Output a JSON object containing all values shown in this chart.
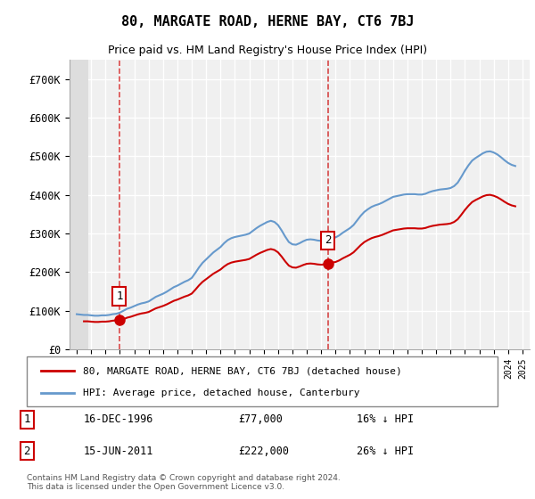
{
  "title": "80, MARGATE ROAD, HERNE BAY, CT6 7BJ",
  "subtitle": "Price paid vs. HM Land Registry's House Price Index (HPI)",
  "ylabel": "",
  "background_color": "#ffffff",
  "plot_bg_color": "#f0f0f0",
  "hatch_color": "#cccccc",
  "grid_color": "#ffffff",
  "ylim": [
    0,
    750000
  ],
  "yticks": [
    0,
    100000,
    200000,
    300000,
    400000,
    500000,
    600000,
    700000
  ],
  "ytick_labels": [
    "£0",
    "£100K",
    "£200K",
    "£300K",
    "£400K",
    "£500K",
    "£600K",
    "£700K"
  ],
  "xlim_start": 1993.5,
  "xlim_end": 2025.5,
  "hpi_color": "#6699cc",
  "price_color": "#cc0000",
  "point1_year": 1996.96,
  "point1_price": 77000,
  "point1_label": "1",
  "point2_year": 2011.46,
  "point2_price": 222000,
  "point2_label": "2",
  "vline1_year": 1996.96,
  "vline2_year": 2011.46,
  "legend_price_label": "80, MARGATE ROAD, HERNE BAY, CT6 7BJ (detached house)",
  "legend_hpi_label": "HPI: Average price, detached house, Canterbury",
  "annotation1_date": "16-DEC-1996",
  "annotation1_price": "£77,000",
  "annotation1_hpi": "16% ↓ HPI",
  "annotation2_date": "15-JUN-2011",
  "annotation2_price": "£222,000",
  "annotation2_hpi": "26% ↓ HPI",
  "footer": "Contains HM Land Registry data © Crown copyright and database right 2024.\nThis data is licensed under the Open Government Licence v3.0.",
  "hpi_data_x": [
    1994,
    1994.25,
    1994.5,
    1994.75,
    1995,
    1995.25,
    1995.5,
    1995.75,
    1996,
    1996.25,
    1996.5,
    1996.75,
    1997,
    1997.25,
    1997.5,
    1997.75,
    1998,
    1998.25,
    1998.5,
    1998.75,
    1999,
    1999.25,
    1999.5,
    1999.75,
    2000,
    2000.25,
    2000.5,
    2000.75,
    2001,
    2001.25,
    2001.5,
    2001.75,
    2002,
    2002.25,
    2002.5,
    2002.75,
    2003,
    2003.25,
    2003.5,
    2003.75,
    2004,
    2004.25,
    2004.5,
    2004.75,
    2005,
    2005.25,
    2005.5,
    2005.75,
    2006,
    2006.25,
    2006.5,
    2006.75,
    2007,
    2007.25,
    2007.5,
    2007.75,
    2008,
    2008.25,
    2008.5,
    2008.75,
    2009,
    2009.25,
    2009.5,
    2009.75,
    2010,
    2010.25,
    2010.5,
    2010.75,
    2011,
    2011.25,
    2011.5,
    2011.75,
    2012,
    2012.25,
    2012.5,
    2012.75,
    2013,
    2013.25,
    2013.5,
    2013.75,
    2014,
    2014.25,
    2014.5,
    2014.75,
    2015,
    2015.25,
    2015.5,
    2015.75,
    2016,
    2016.25,
    2016.5,
    2016.75,
    2017,
    2017.25,
    2017.5,
    2017.75,
    2018,
    2018.25,
    2018.5,
    2018.75,
    2019,
    2019.25,
    2019.5,
    2019.75,
    2020,
    2020.25,
    2020.5,
    2020.75,
    2021,
    2021.25,
    2021.5,
    2021.75,
    2022,
    2022.25,
    2022.5,
    2022.75,
    2023,
    2023.25,
    2023.5,
    2023.75,
    2024,
    2024.25,
    2024.5
  ],
  "hpi_data_y": [
    91000,
    90000,
    89000,
    89000,
    88000,
    87000,
    87000,
    88000,
    88000,
    89000,
    91000,
    92000,
    95000,
    100000,
    105000,
    108000,
    112000,
    116000,
    119000,
    121000,
    124000,
    130000,
    136000,
    140000,
    144000,
    149000,
    155000,
    161000,
    165000,
    170000,
    175000,
    179000,
    185000,
    198000,
    212000,
    224000,
    233000,
    242000,
    251000,
    258000,
    265000,
    275000,
    283000,
    288000,
    291000,
    293000,
    295000,
    297000,
    300000,
    307000,
    314000,
    320000,
    325000,
    330000,
    333000,
    330000,
    322000,
    308000,
    292000,
    278000,
    272000,
    271000,
    275000,
    280000,
    284000,
    285000,
    284000,
    282000,
    281000,
    282000,
    285000,
    288000,
    290000,
    295000,
    302000,
    308000,
    314000,
    322000,
    334000,
    346000,
    356000,
    363000,
    369000,
    373000,
    376000,
    380000,
    385000,
    390000,
    395000,
    397000,
    399000,
    401000,
    402000,
    402000,
    402000,
    401000,
    401000,
    403000,
    407000,
    410000,
    412000,
    414000,
    415000,
    416000,
    418000,
    423000,
    432000,
    447000,
    463000,
    477000,
    489000,
    496000,
    502000,
    508000,
    512000,
    513000,
    510000,
    505000,
    498000,
    490000,
    483000,
    478000,
    475000
  ],
  "price_data_x": [
    1996.96,
    2011.46
  ],
  "price_data_y": [
    77000,
    222000
  ],
  "price_line_x": [
    1994,
    1996.96,
    2011.46,
    2024.5
  ],
  "price_line_y": [
    75000,
    77000,
    222000,
    390000
  ]
}
